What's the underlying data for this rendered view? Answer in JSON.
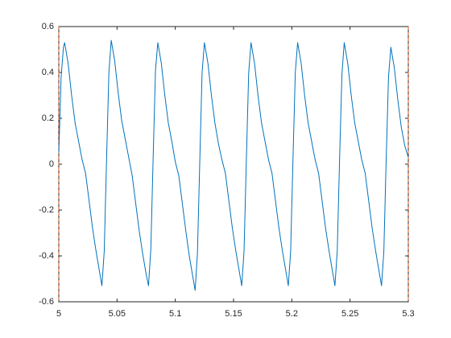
{
  "chart_data": {
    "type": "line",
    "x": [
      5.0,
      5.002,
      5.004,
      5.005,
      5.008,
      5.011,
      5.014,
      5.017,
      5.02,
      5.023,
      5.026,
      5.029,
      5.032,
      5.035,
      5.037,
      5.039,
      5.041,
      5.043,
      5.045,
      5.048,
      5.051,
      5.054,
      5.057,
      5.06,
      5.063,
      5.066,
      5.069,
      5.072,
      5.075,
      5.077,
      5.079,
      5.081,
      5.083,
      5.085,
      5.088,
      5.091,
      5.094,
      5.097,
      5.1,
      5.103,
      5.106,
      5.109,
      5.112,
      5.115,
      5.117,
      5.119,
      5.121,
      5.123,
      5.125,
      5.128,
      5.131,
      5.134,
      5.137,
      5.14,
      5.143,
      5.146,
      5.149,
      5.152,
      5.155,
      5.157,
      5.159,
      5.161,
      5.163,
      5.165,
      5.168,
      5.171,
      5.174,
      5.177,
      5.18,
      5.183,
      5.186,
      5.189,
      5.192,
      5.195,
      5.197,
      5.199,
      5.201,
      5.203,
      5.205,
      5.208,
      5.211,
      5.214,
      5.217,
      5.22,
      5.223,
      5.226,
      5.229,
      5.232,
      5.235,
      5.237,
      5.239,
      5.241,
      5.243,
      5.245,
      5.248,
      5.251,
      5.254,
      5.257,
      5.26,
      5.263,
      5.266,
      5.269,
      5.272,
      5.275,
      5.277,
      5.279,
      5.281,
      5.283,
      5.285,
      5.288,
      5.291,
      5.294,
      5.297,
      5.3
    ],
    "series": [
      {
        "color": "#0072bd",
        "values": [
          0.05,
          0.38,
          0.51,
          0.53,
          0.44,
          0.3,
          0.18,
          0.1,
          0.02,
          -0.04,
          -0.16,
          -0.28,
          -0.38,
          -0.47,
          -0.53,
          -0.38,
          0.02,
          0.4,
          0.54,
          0.45,
          0.31,
          0.19,
          0.11,
          0.03,
          -0.05,
          -0.17,
          -0.29,
          -0.39,
          -0.48,
          -0.53,
          -0.37,
          0.03,
          0.41,
          0.53,
          0.44,
          0.3,
          0.18,
          0.1,
          0.01,
          -0.05,
          -0.17,
          -0.29,
          -0.4,
          -0.49,
          -0.55,
          -0.39,
          0.01,
          0.4,
          0.53,
          0.44,
          0.3,
          0.18,
          0.09,
          0.02,
          -0.04,
          -0.16,
          -0.28,
          -0.38,
          -0.47,
          -0.53,
          -0.38,
          0.02,
          0.4,
          0.53,
          0.44,
          0.3,
          0.18,
          0.1,
          0.02,
          -0.04,
          -0.16,
          -0.28,
          -0.38,
          -0.47,
          -0.53,
          -0.38,
          0.02,
          0.4,
          0.53,
          0.44,
          0.3,
          0.18,
          0.1,
          0.02,
          -0.04,
          -0.16,
          -0.28,
          -0.38,
          -0.47,
          -0.53,
          -0.38,
          0.02,
          0.39,
          0.53,
          0.44,
          0.3,
          0.18,
          0.1,
          0.02,
          -0.04,
          -0.16,
          -0.28,
          -0.38,
          -0.47,
          -0.53,
          -0.38,
          0.02,
          0.38,
          0.51,
          0.42,
          0.28,
          0.16,
          0.08,
          0.03
        ]
      }
    ],
    "vlines": [
      5,
      5.3
    ],
    "vline_color": "#d95319",
    "xlim": [
      5,
      5.3
    ],
    "xticks": [
      5,
      5.05,
      5.1,
      5.15,
      5.2,
      5.25,
      5.3
    ],
    "ylim": [
      -0.6,
      0.6
    ],
    "yticks": [
      -0.6,
      -0.4,
      -0.2,
      0,
      0.2,
      0.4,
      0.6
    ],
    "grid": false
  }
}
